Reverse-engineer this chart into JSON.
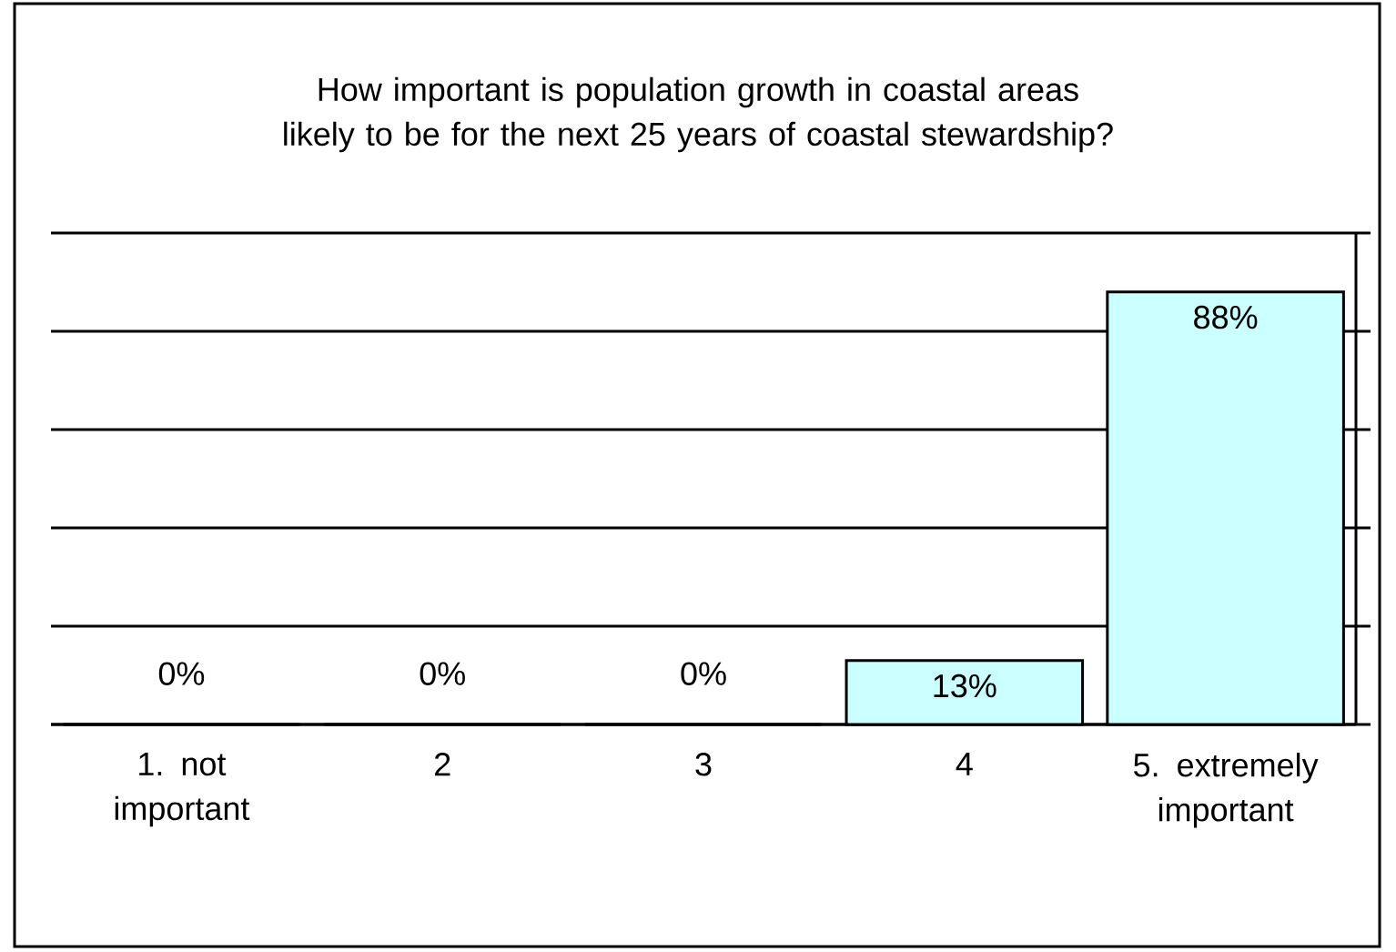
{
  "chart_data": {
    "type": "bar",
    "title": "How important is population growth in coastal areas likely to be for the next 25 years of coastal stewardship?",
    "categories": [
      "1. not important",
      "2",
      "3",
      "4",
      "5. extremely important"
    ],
    "values": [
      0,
      0,
      0,
      13,
      88
    ],
    "value_labels": [
      "0%",
      "0%",
      "0%",
      "13%",
      "88%"
    ],
    "color": "#ccffff",
    "ylim": [
      0,
      100
    ],
    "yticks": [
      {
        "value": 0,
        "label": null
      },
      {
        "value": 20,
        "label": null
      },
      {
        "value": 40,
        "label": null
      },
      {
        "value": 60,
        "label": null
      },
      {
        "value": 80,
        "label": null
      },
      {
        "value": 100,
        "label": null
      }
    ],
    "grid": "y",
    "tick_labels": "x"
  }
}
